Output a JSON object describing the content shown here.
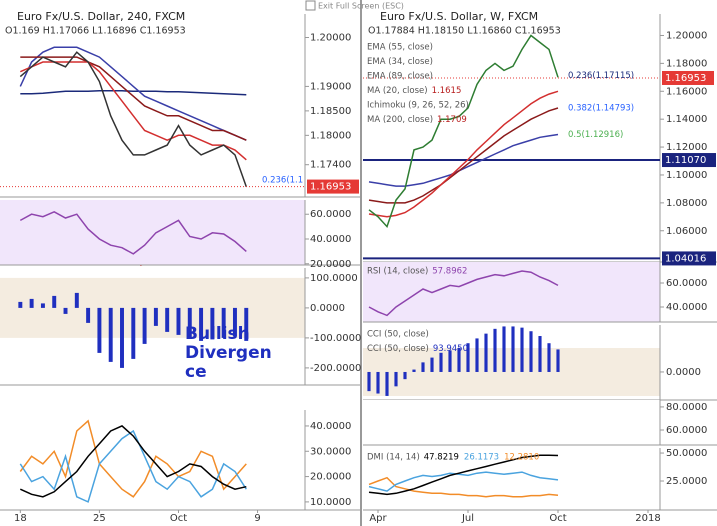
{
  "header": "Exit Full Screen (ESC)",
  "chart_data": [
    {
      "type": "line",
      "title": "Euro Fx/U.S. Dollar, 240, FXCM",
      "subtitle": "O1.169 H1.17066 L1.16896 C1.16953",
      "xlim": [
        -1.8,
        25.2
      ],
      "x": [
        0,
        1,
        2,
        3,
        4,
        5,
        6,
        7,
        8,
        9,
        10,
        11,
        12,
        13,
        14,
        15,
        16,
        17,
        18,
        19,
        20
      ],
      "ylim": [
        1.1674,
        1.2048
      ],
      "yticks": [
        {
          "value": 1.2,
          "label": "1.20000"
        },
        {
          "value": 1.19,
          "label": "1.19000"
        },
        {
          "value": 1.185,
          "label": "1.18500"
        },
        {
          "value": 1.18,
          "label": "1.18000"
        },
        {
          "value": 1.174,
          "label": "1.17400"
        }
      ],
      "last": 1.16953,
      "annotations": [
        {
          "text": "0.236(1.1",
          "color": "#2962ff"
        }
      ],
      "series": [
        {
          "color": "#1b2a7a",
          "values": [
            1.1885,
            1.1885,
            1.1886,
            1.1888,
            1.189,
            1.189,
            1.189,
            1.1891,
            1.1891,
            1.1891,
            1.189,
            1.189,
            1.189,
            1.1889,
            1.1889,
            1.1888,
            1.1887,
            1.1886,
            1.1885,
            1.1884,
            1.1883
          ]
        },
        {
          "color": "#3a3fa8",
          "values": [
            1.19,
            1.195,
            1.197,
            1.198,
            1.198,
            1.198,
            1.197,
            1.196,
            1.194,
            1.192,
            1.19,
            1.188,
            1.187,
            1.186,
            1.185,
            1.184,
            1.183,
            1.182,
            1.181,
            1.18,
            1.179
          ]
        },
        {
          "color": "#8b1a1a",
          "values": [
            1.196,
            1.196,
            1.196,
            1.196,
            1.196,
            1.196,
            1.195,
            1.194,
            1.192,
            1.19,
            1.188,
            1.186,
            1.185,
            1.184,
            1.184,
            1.183,
            1.182,
            1.181,
            1.181,
            1.18,
            1.179
          ]
        },
        {
          "color": "#d32f2f",
          "values": [
            1.193,
            1.194,
            1.195,
            1.195,
            1.195,
            1.195,
            1.195,
            1.193,
            1.19,
            1.187,
            1.184,
            1.181,
            1.18,
            1.179,
            1.18,
            1.18,
            1.179,
            1.178,
            1.178,
            1.177,
            1.175
          ]
        },
        {
          "color": "#333333",
          "values": [
            1.192,
            1.194,
            1.196,
            1.195,
            1.194,
            1.197,
            1.195,
            1.191,
            1.184,
            1.179,
            1.176,
            1.176,
            1.177,
            1.178,
            1.182,
            1.178,
            1.176,
            1.177,
            1.178,
            1.176,
            1.1695
          ]
        }
      ]
    },
    {
      "type": "line",
      "xlim": [
        -1.8,
        25.2
      ],
      "x": [
        0,
        1,
        2,
        3,
        4,
        5,
        6,
        7,
        8,
        9,
        10,
        11,
        12,
        13,
        14,
        15,
        16,
        17,
        18,
        19,
        20
      ],
      "ylim": [
        19,
        71.5
      ],
      "yticks": [
        {
          "value": 60,
          "label": "60.0000"
        },
        {
          "value": 40,
          "label": "40.0000"
        },
        {
          "value": 20,
          "label": "20.0000"
        }
      ],
      "series": [
        {
          "color": "#8e44ad",
          "values": [
            55,
            60,
            58,
            62,
            57,
            60,
            48,
            40,
            35,
            33,
            28,
            35,
            45,
            50,
            55,
            42,
            40,
            45,
            44,
            38,
            30
          ]
        }
      ]
    },
    {
      "type": "bar",
      "xlim": [
        -1.8,
        25.2
      ],
      "x": [
        0,
        1,
        2,
        3,
        4,
        5,
        6,
        7,
        8,
        9,
        10,
        11,
        12,
        13,
        14,
        15,
        16,
        17,
        18,
        19,
        20
      ],
      "ylim": [
        -257,
        133
      ],
      "yticks": [
        {
          "value": 100,
          "label": "100.0000"
        },
        {
          "value": 0,
          "label": "0.0000"
        },
        {
          "value": -100,
          "label": "-100.0000"
        },
        {
          "value": -200,
          "label": "-200.0000"
        }
      ],
      "annotations": [
        {
          "text": "Bullish",
          "color": "#1f2fbf"
        },
        {
          "text": "Divergen",
          "color": "#1f2fbf"
        },
        {
          "text": "ce",
          "color": "#1f2fbf"
        }
      ],
      "series": [
        {
          "color": "#1f2fbf",
          "values": [
            20,
            30,
            15,
            40,
            -20,
            50,
            -50,
            -150,
            -180,
            -200,
            -170,
            -120,
            -60,
            -80,
            -90,
            -100,
            -110,
            -105,
            -100,
            -95,
            -110
          ]
        }
      ]
    },
    {
      "type": "line",
      "xlim": [
        -1.8,
        25.2
      ],
      "x": [
        0,
        1,
        2,
        3,
        4,
        5,
        6,
        7,
        8,
        9,
        10,
        11,
        12,
        13,
        14,
        15,
        16,
        17,
        18,
        19,
        20
      ],
      "ylim": [
        6.8,
        46.3
      ],
      "yticks": [
        {
          "value": 40,
          "label": "40.0000"
        },
        {
          "value": 30,
          "label": "30.0000"
        },
        {
          "value": 20,
          "label": "20.0000"
        },
        {
          "value": 10,
          "label": "10.0000"
        }
      ],
      "xticks": [
        {
          "value": 0,
          "label": "18"
        },
        {
          "value": 7,
          "label": "25"
        },
        {
          "value": 14,
          "label": "Oct"
        },
        {
          "value": 21,
          "label": "9"
        }
      ],
      "series": [
        {
          "color": "#f28c28",
          "values": [
            22,
            28,
            25,
            30,
            20,
            38,
            42,
            25,
            20,
            15,
            12,
            18,
            28,
            25,
            20,
            22,
            30,
            28,
            15,
            20,
            25
          ]
        },
        {
          "color": "#4aa3df",
          "values": [
            25,
            18,
            20,
            15,
            28,
            12,
            10,
            25,
            30,
            35,
            38,
            28,
            18,
            15,
            20,
            18,
            12,
            15,
            25,
            22,
            15
          ]
        },
        {
          "color": "#000000",
          "values": [
            15,
            13,
            12,
            14,
            18,
            22,
            28,
            33,
            38,
            40,
            36,
            30,
            25,
            20,
            22,
            25,
            24,
            20,
            17,
            15,
            16
          ]
        }
      ]
    },
    {
      "type": "line",
      "title": "Euro Fx/U.S. Dollar, W, FXCM",
      "subtitle": "O1.17884 H1.18150 L1.16860 C1.16953",
      "xlim": [
        -0.5,
        9.4
      ],
      "x": [
        -0.3,
        0,
        0.3,
        0.6,
        0.9,
        1.2,
        1.5,
        1.8,
        2.1,
        2.4,
        2.7,
        3.0,
        3.3,
        3.6,
        3.9,
        4.2,
        4.5,
        4.8,
        5.1,
        5.4,
        5.7,
        6.0
      ],
      "ylim": [
        1.0376,
        1.2154
      ],
      "yticks": [
        {
          "value": 1.2,
          "label": "1.20000"
        },
        {
          "value": 1.18,
          "label": "1.18000"
        },
        {
          "value": 1.16,
          "label": "1.16000"
        },
        {
          "value": 1.14,
          "label": "1.14000"
        },
        {
          "value": 1.12,
          "label": "1.12000"
        },
        {
          "value": 1.1,
          "label": "1.10000"
        },
        {
          "value": 1.08,
          "label": "1.08000"
        },
        {
          "value": 1.06,
          "label": "1.06000"
        }
      ],
      "last": 1.16953,
      "levels": [
        {
          "value": 1.1107,
          "label": "1.11070"
        },
        {
          "value": 1.04016,
          "label": "1.04016"
        }
      ],
      "legend": [
        {
          "label": "EMA (55, close)"
        },
        {
          "label": "EMA (34, close)"
        },
        {
          "label": "EMA (89, close)"
        },
        {
          "label": "MA (20, close)",
          "readings": [
            "1.1615"
          ]
        },
        {
          "label": "Ichimoku (9, 26, 52, 26)"
        },
        {
          "label": "MA (200, close)",
          "readings": [
            "1.1709"
          ]
        }
      ],
      "annotations": [
        {
          "text": "0.236(1.17115)",
          "value": 1.17115,
          "color": "#1b2a7a"
        },
        {
          "text": "0.382(1.14793)",
          "value": 1.14793,
          "color": "#2962ff"
        },
        {
          "text": "0.5(1.12916)",
          "value": 1.12916,
          "color": "#4caf50"
        }
      ],
      "series": [
        {
          "color": "#3a3fa8",
          "values": [
            1.095,
            1.094,
            1.093,
            1.092,
            1.092,
            1.093,
            1.094,
            1.096,
            1.098,
            1.1,
            1.103,
            1.106,
            1.109,
            1.112,
            1.115,
            1.118,
            1.121,
            1.123,
            1.125,
            1.127,
            1.128,
            1.129
          ]
        },
        {
          "color": "#8b1a1a",
          "values": [
            1.082,
            1.081,
            1.08,
            1.08,
            1.08,
            1.082,
            1.085,
            1.089,
            1.093,
            1.098,
            1.103,
            1.108,
            1.113,
            1.118,
            1.123,
            1.128,
            1.132,
            1.136,
            1.14,
            1.143,
            1.146,
            1.148
          ]
        },
        {
          "color": "#d32f2f",
          "values": [
            1.072,
            1.071,
            1.07,
            1.071,
            1.073,
            1.077,
            1.082,
            1.087,
            1.093,
            1.099,
            1.105,
            1.111,
            1.118,
            1.124,
            1.13,
            1.136,
            1.141,
            1.146,
            1.151,
            1.155,
            1.158,
            1.16
          ]
        },
        {
          "color": "#2e7d32",
          "values": [
            1.075,
            1.07,
            1.063,
            1.082,
            1.09,
            1.118,
            1.12,
            1.125,
            1.14,
            1.14,
            1.142,
            1.148,
            1.165,
            1.175,
            1.18,
            1.175,
            1.178,
            1.19,
            1.2,
            1.195,
            1.19,
            1.17
          ]
        }
      ]
    },
    {
      "type": "line",
      "xlim": [
        -0.5,
        9.4
      ],
      "x": [
        -0.3,
        0,
        0.3,
        0.6,
        0.9,
        1.2,
        1.5,
        1.8,
        2.1,
        2.4,
        2.7,
        3.0,
        3.3,
        3.6,
        3.9,
        4.2,
        4.5,
        4.8,
        5.1,
        5.4,
        5.7,
        6.0
      ],
      "ylim": [
        27.5,
        77.5
      ],
      "yticks": [
        {
          "value": 60,
          "label": "60.0000"
        },
        {
          "value": 40,
          "label": "40.0000"
        }
      ],
      "legend": [
        {
          "label": "RSI (14, close)",
          "readings": [
            "57.8962"
          ]
        }
      ],
      "series": [
        {
          "color": "#8e44ad",
          "values": [
            40,
            36,
            33,
            40,
            45,
            50,
            55,
            52,
            55,
            58,
            57,
            60,
            63,
            65,
            67,
            66,
            68,
            70,
            69,
            65,
            62,
            58
          ]
        }
      ]
    },
    {
      "type": "bar",
      "xlim": [
        -0.5,
        9.4
      ],
      "x": [
        -0.3,
        0,
        0.3,
        0.6,
        0.9,
        1.2,
        1.5,
        1.8,
        2.1,
        2.4,
        2.7,
        3.0,
        3.3,
        3.6,
        3.9,
        4.2,
        4.5,
        4.8,
        5.1,
        5.4,
        5.7,
        6.0
      ],
      "ylim": [
        -117,
        196
      ],
      "yticks": [
        {
          "value": 0,
          "label": "0.0000"
        }
      ],
      "legend": [
        {
          "label": "CCI (50, close)"
        },
        {
          "label": "CCI (50, close)",
          "readings": [
            "93.9450"
          ]
        }
      ],
      "series": [
        {
          "color": "#1f2fbf",
          "values": [
            -80,
            -90,
            -100,
            -60,
            -30,
            10,
            40,
            60,
            80,
            90,
            100,
            120,
            140,
            160,
            180,
            190,
            190,
            185,
            170,
            150,
            120,
            94
          ]
        }
      ]
    },
    {
      "type": "line",
      "xlim": [
        -0.5,
        9.4
      ],
      "ylim": [
        47,
        86
      ],
      "yticks": [
        {
          "value": 80,
          "label": "80.0000"
        },
        {
          "value": 60,
          "label": "60.0000"
        }
      ],
      "series": []
    },
    {
      "type": "line",
      "xlim": [
        -0.5,
        9.4
      ],
      "x": [
        -0.3,
        0,
        0.3,
        0.6,
        0.9,
        1.2,
        1.5,
        1.8,
        2.1,
        2.4,
        2.7,
        3.0,
        3.3,
        3.6,
        3.9,
        4.2,
        4.5,
        4.8,
        5.1,
        5.4,
        5.7,
        6.0
      ],
      "ylim": [
        -0.9,
        54.5
      ],
      "yticks": [
        {
          "value": 50,
          "label": "50.0000"
        },
        {
          "value": 25,
          "label": "25.0000"
        }
      ],
      "xticks": [
        {
          "value": 0,
          "label": "Apr"
        },
        {
          "value": 3,
          "label": "Jul"
        },
        {
          "value": 6,
          "label": "Oct"
        },
        {
          "value": 9,
          "label": "2018"
        }
      ],
      "legend": [
        {
          "label": "DMI (14, 14)",
          "readings": [
            "47.8219",
            "26.1173",
            "12.2810"
          ]
        }
      ],
      "series": [
        {
          "color": "#f28c28",
          "values": [
            22,
            25,
            28,
            20,
            18,
            16,
            15,
            14,
            14,
            13,
            13,
            12,
            12,
            11,
            12,
            12,
            11,
            11,
            12,
            12,
            13,
            12.3
          ]
        },
        {
          "color": "#4aa3df",
          "values": [
            20,
            18,
            16,
            22,
            25,
            28,
            30,
            29,
            30,
            32,
            31,
            30,
            32,
            33,
            32,
            31,
            32,
            33,
            30,
            28,
            27,
            26
          ]
        },
        {
          "color": "#000000",
          "values": [
            15,
            14,
            13,
            14,
            16,
            18,
            21,
            24,
            27,
            30,
            32,
            34,
            36,
            38,
            40,
            42,
            44,
            46,
            47,
            48,
            48,
            47.8
          ]
        }
      ]
    }
  ]
}
